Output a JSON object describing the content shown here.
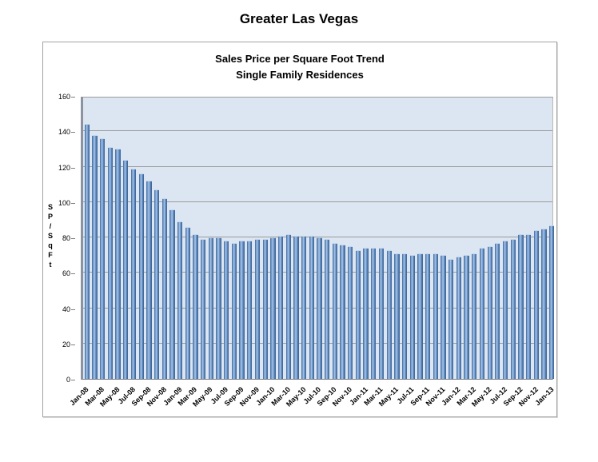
{
  "title": "Greater Las Vegas",
  "chart": {
    "title_line1": "Sales Price per Square Foot Trend",
    "title_line2": "Single Family Residences",
    "y_axis_title_letters": [
      "S",
      "P",
      "/",
      "S",
      "q",
      "F",
      "t"
    ]
  },
  "chart_data": {
    "type": "bar",
    "title": "Sales Price per Square Foot Trend",
    "subtitle": "Single Family Residences",
    "xlabel": "",
    "ylabel": "SP/SqFt",
    "ylim": [
      0,
      160
    ],
    "ytick_step": 20,
    "yticks": [
      0,
      20,
      40,
      60,
      80,
      100,
      120,
      140,
      160
    ],
    "grid": true,
    "legend": false,
    "xtick_label_interval": 2,
    "bar_color": "#4f81bd",
    "plot_bg_color": "#dce6f2",
    "categories": [
      "Jan-08",
      "Feb-08",
      "Mar-08",
      "Apr-08",
      "May-08",
      "Jun-08",
      "Jul-08",
      "Aug-08",
      "Sep-08",
      "Oct-08",
      "Nov-08",
      "Dec-08",
      "Jan-09",
      "Feb-09",
      "Mar-09",
      "Apr-09",
      "May-09",
      "Jun-09",
      "Jul-09",
      "Aug-09",
      "Sep-09",
      "Oct-09",
      "Nov-09",
      "Dec-09",
      "Jan-10",
      "Feb-10",
      "Mar-10",
      "Apr-10",
      "May-10",
      "Jun-10",
      "Jul-10",
      "Aug-10",
      "Sep-10",
      "Oct-10",
      "Nov-10",
      "Dec-10",
      "Jan-11",
      "Feb-11",
      "Mar-11",
      "Apr-11",
      "May-11",
      "Jun-11",
      "Jul-11",
      "Aug-11",
      "Sep-11",
      "Oct-11",
      "Nov-11",
      "Dec-11",
      "Jan-12",
      "Feb-12",
      "Mar-12",
      "Apr-12",
      "May-12",
      "Jun-12",
      "Jul-12",
      "Aug-12",
      "Sep-12",
      "Oct-12",
      "Nov-12",
      "Dec-12",
      "Jan-13"
    ],
    "values": [
      144,
      138,
      136,
      131,
      130,
      124,
      119,
      116,
      112,
      107,
      102,
      96,
      89,
      86,
      82,
      79,
      80,
      80,
      78,
      77,
      78,
      78,
      79,
      79,
      80,
      81,
      82,
      81,
      81,
      81,
      80,
      79,
      77,
      76,
      75,
      73,
      74,
      74,
      74,
      73,
      71,
      71,
      70,
      71,
      71,
      71,
      70,
      68,
      69,
      70,
      71,
      74,
      75,
      77,
      78,
      79,
      82,
      82,
      84,
      85,
      87
    ],
    "visible_xtick_labels": [
      "Jan-08",
      "Mar-08",
      "May-08",
      "Jul-08",
      "Sep-08",
      "Nov-08",
      "Jan-09",
      "Mar-09",
      "May-09",
      "Jul-09",
      "Sep-09",
      "Nov-09",
      "Jan-10",
      "Mar-10",
      "May-10",
      "Jul-10",
      "Sep-10",
      "Nov-10",
      "Jan-11",
      "Mar-11",
      "May-11",
      "Jul-11",
      "Sep-11",
      "Nov-11",
      "Jan-12",
      "Mar-12",
      "May-12",
      "Jul-12",
      "Sep-12",
      "Nov-12",
      "Jan-13"
    ]
  }
}
